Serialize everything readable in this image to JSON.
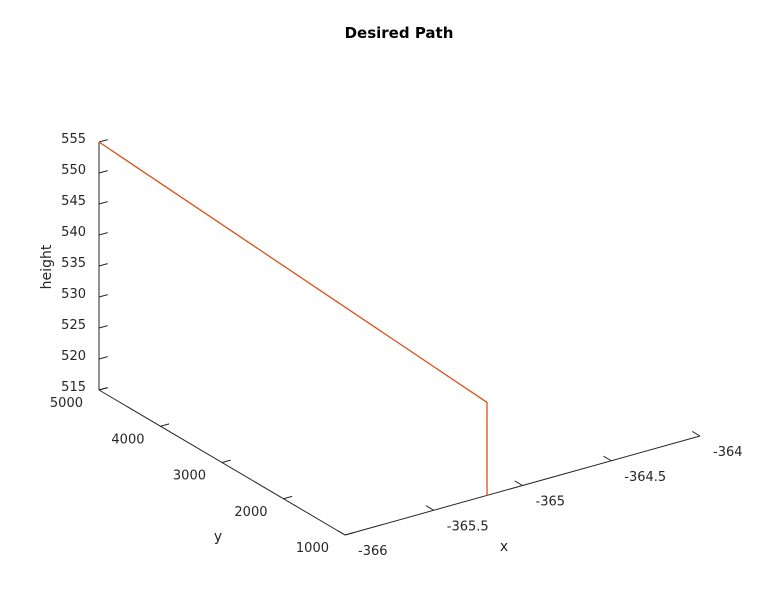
{
  "chart_data": {
    "type": "line",
    "title": "Desired Path",
    "xlabel": "x",
    "ylabel": "y",
    "zlabel": "height",
    "xlim": [
      -366,
      -364
    ],
    "ylim": [
      1000,
      5000
    ],
    "zlim": [
      515,
      555
    ],
    "xticks": [
      -366,
      -365.5,
      -365,
      -364.5,
      -364
    ],
    "xtick_labels": [
      "-366",
      "-365.5",
      "-365",
      "-364.5",
      "-364"
    ],
    "yticks": [
      1000,
      2000,
      3000,
      4000,
      5000
    ],
    "ytick_labels": [
      "1000",
      "2000",
      "3000",
      "4000",
      "5000"
    ],
    "zticks": [
      515,
      520,
      525,
      530,
      535,
      540,
      545,
      550,
      555
    ],
    "ztick_labels": [
      "515",
      "520",
      "525",
      "530",
      "535",
      "540",
      "545",
      "550",
      "555"
    ],
    "grid": false,
    "series": [
      {
        "color": "#d95319",
        "points": [
          {
            "x": -365.2,
            "y": 1000,
            "z": 515
          },
          {
            "x": -365.2,
            "y": 1000,
            "z": 530
          },
          {
            "x": -366,
            "y": 5000,
            "z": 555
          }
        ]
      }
    ]
  }
}
